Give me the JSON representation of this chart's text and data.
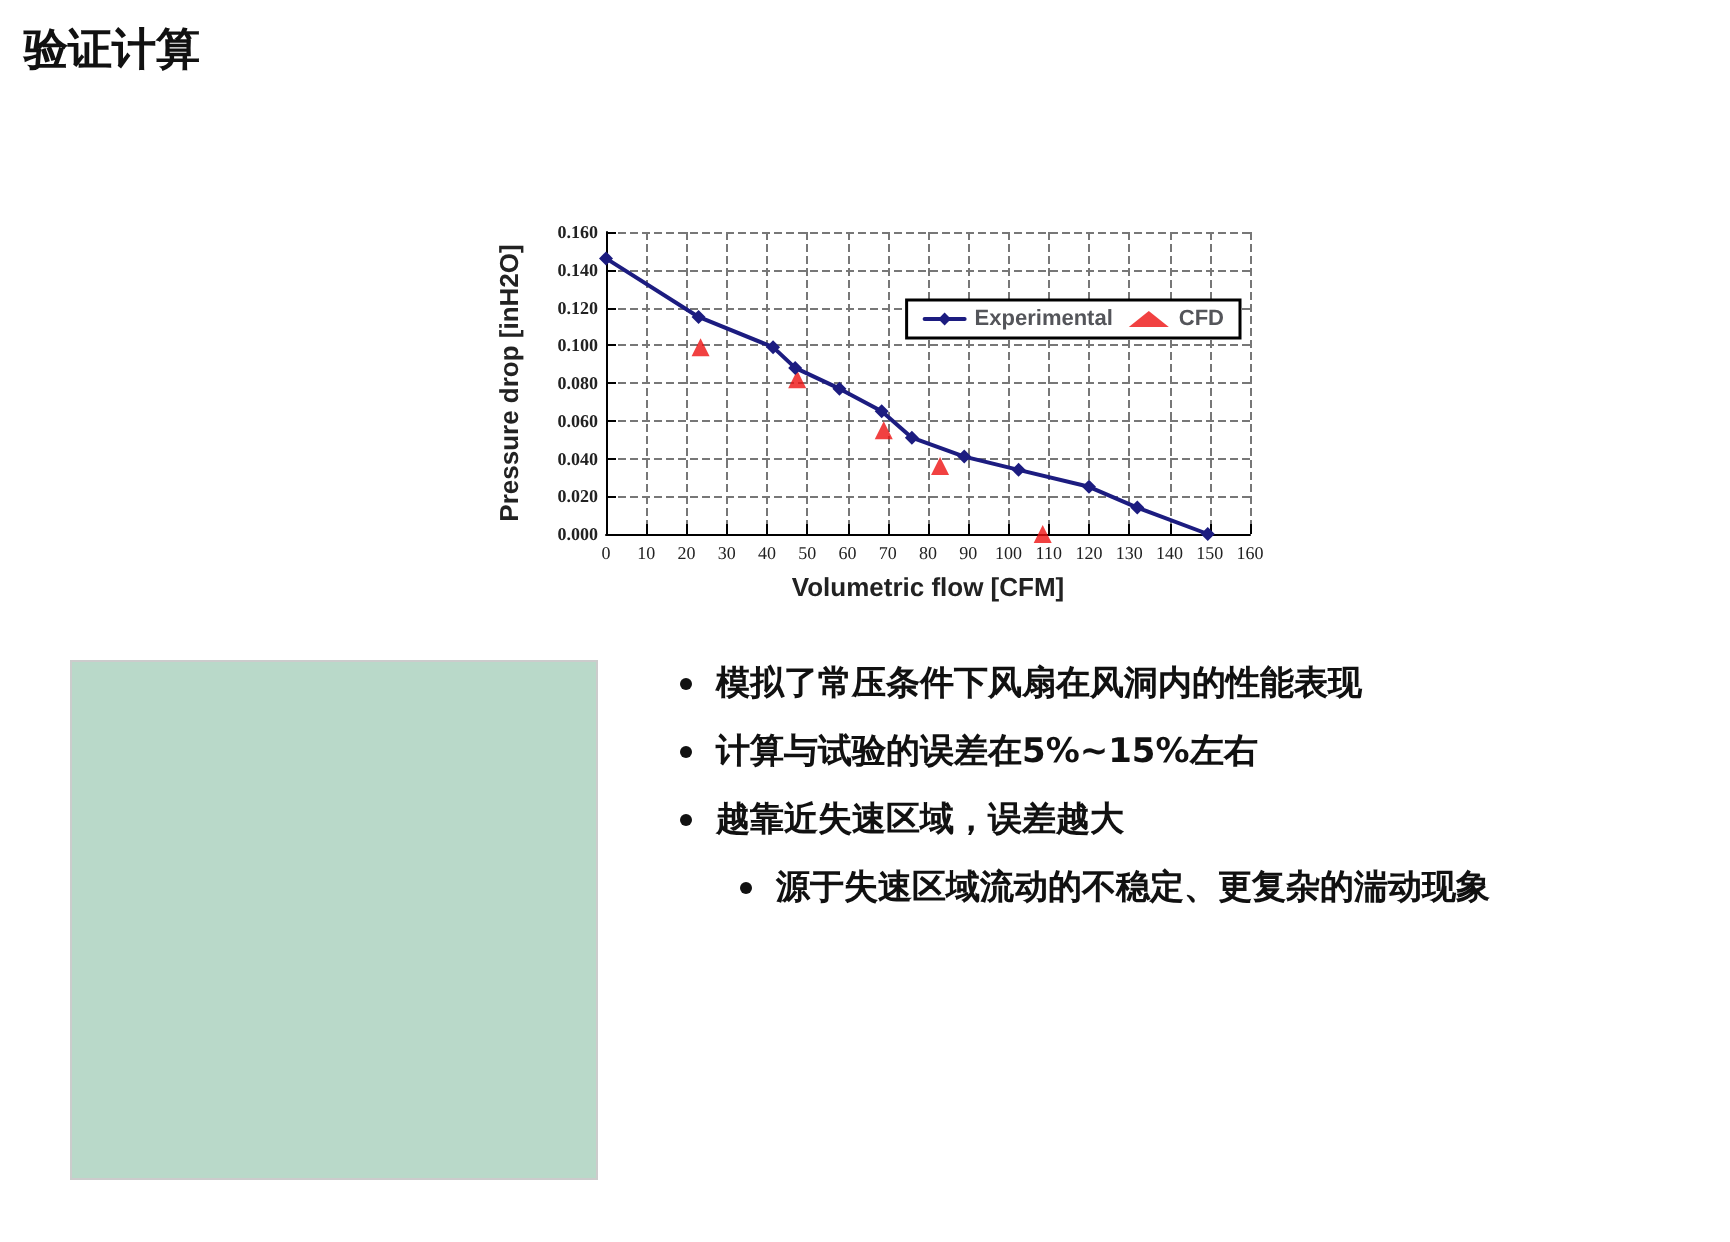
{
  "chart_data": {
    "type": "line",
    "title": "验证计算",
    "xlabel": "Volumetric flow [CFM]",
    "ylabel": "Pressure drop [inH2O]",
    "xlim": [
      0,
      160
    ],
    "xticks": [
      0,
      10,
      20,
      30,
      40,
      50,
      60,
      70,
      80,
      90,
      100,
      110,
      120,
      130,
      140,
      150,
      160
    ],
    "ylim": [
      0,
      0.16
    ],
    "yticks": [
      {
        "value": 0,
        "label": "0.000"
      },
      {
        "value": 0.02,
        "label": "0.020"
      },
      {
        "value": 0.04,
        "label": "0.040"
      },
      {
        "value": 0.06,
        "label": "0.060"
      },
      {
        "value": 0.08,
        "label": "0.080"
      },
      {
        "value": 0.1,
        "label": "0.100"
      },
      {
        "value": 0.12,
        "label": "0.120"
      },
      {
        "value": 0.14,
        "label": "0.140"
      },
      {
        "value": 0.16,
        "label": "0.160"
      }
    ],
    "series": [
      {
        "name": "Experimental",
        "color": "#1c1c80",
        "marker": "diamond",
        "line_style": "solid",
        "x": [
          0,
          23,
          41.5,
          47,
          58,
          68.5,
          76,
          89,
          102.5,
          120,
          132,
          149.5
        ],
        "values": [
          0.146,
          0.115,
          0.099,
          0.088,
          0.077,
          0.065,
          0.051,
          0.041,
          0.034,
          0.025,
          0.014,
          0.0
        ]
      },
      {
        "name": "CFD",
        "type": "scatter",
        "color": "#ee1111",
        "marker": "triangle",
        "x": [
          23.5,
          47.5,
          69,
          83,
          108.5
        ],
        "values": [
          0.099,
          0.082,
          0.055,
          0.036,
          0.0
        ]
      }
    ],
    "grid": true,
    "legend": "top right",
    "annotations": [
      "模拟了常压条件下风扇在风洞内的性能表现",
      "计算与试验的误差在5%~15%左右",
      "越靠近失速区域，误差越大",
      "源于失速区域流动的不稳定、更复杂的湍动现象"
    ]
  }
}
